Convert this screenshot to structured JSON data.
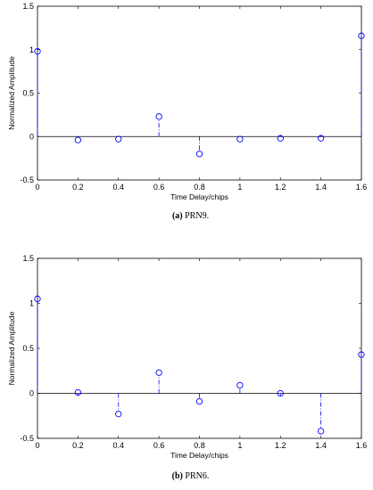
{
  "chart_data": [
    {
      "type": "scatter",
      "style": "stem",
      "caption_label": "(a)",
      "caption_text": " PRN9.",
      "xlabel": "Time Delay/chips",
      "ylabel": "Normalized Amplitude",
      "xlim": [
        0,
        1.6
      ],
      "ylim": [
        -0.5,
        1.5
      ],
      "xticks": [
        "0",
        "0.2",
        "0.4",
        "0.6",
        "0.8",
        "1",
        "1.2",
        "1.4",
        "1.6"
      ],
      "yticks": [
        "-0.5",
        "0",
        "0.5",
        "1",
        "1.5"
      ],
      "grid": false,
      "marker_color": "#0000ff",
      "series": [
        {
          "x": [
            0,
            0.2,
            0.4,
            0.6,
            0.8,
            1.0,
            1.2,
            1.4,
            1.6
          ],
          "y": [
            0.98,
            -0.04,
            -0.03,
            0.23,
            -0.2,
            -0.03,
            -0.02,
            -0.02,
            1.16
          ]
        }
      ]
    },
    {
      "type": "scatter",
      "style": "stem",
      "caption_label": "(b)",
      "caption_text": " PRN6.",
      "xlabel": "Time Delay/chips",
      "ylabel": "Normalized Amplitude",
      "xlim": [
        0,
        1.6
      ],
      "ylim": [
        -0.5,
        1.5
      ],
      "xticks": [
        "0",
        "0.2",
        "0.4",
        "0.6",
        "0.8",
        "1",
        "1.2",
        "1.4",
        "1.6"
      ],
      "yticks": [
        "-0.5",
        "0",
        "0.5",
        "1",
        "1.5"
      ],
      "grid": false,
      "marker_color": "#0000ff",
      "series": [
        {
          "x": [
            0,
            0.2,
            0.4,
            0.6,
            0.8,
            1.0,
            1.2,
            1.4,
            1.6
          ],
          "y": [
            1.05,
            0.01,
            -0.23,
            0.23,
            -0.09,
            0.09,
            0.0,
            -0.42,
            0.43
          ]
        }
      ]
    }
  ]
}
